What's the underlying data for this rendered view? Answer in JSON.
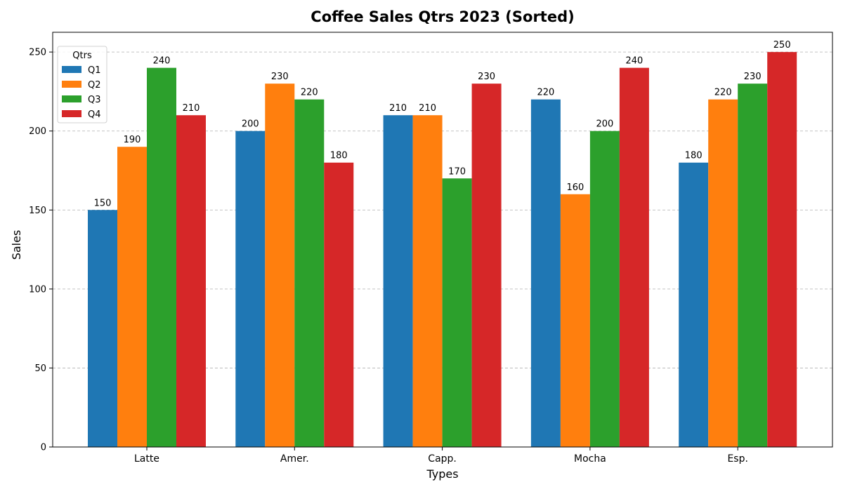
{
  "chart_data": {
    "type": "bar",
    "title": "Coffee Sales Qtrs 2023 (Sorted)",
    "xlabel": "Types",
    "ylabel": "Sales",
    "categories": [
      "Latte",
      "Amer.",
      "Capp.",
      "Mocha",
      "Esp."
    ],
    "series": [
      {
        "name": "Q1",
        "color": "#1f77b4",
        "values": [
          150,
          200,
          210,
          220,
          180
        ]
      },
      {
        "name": "Q2",
        "color": "#ff7f0e",
        "values": [
          190,
          230,
          210,
          160,
          220
        ]
      },
      {
        "name": "Q3",
        "color": "#2ca02c",
        "values": [
          240,
          220,
          170,
          200,
          230
        ]
      },
      {
        "name": "Q4",
        "color": "#d62728",
        "values": [
          210,
          180,
          230,
          240,
          250
        ]
      }
    ],
    "ylim": [
      0,
      262.5
    ],
    "yticks": [
      0,
      50,
      100,
      150,
      200,
      250
    ],
    "grid": "horizontal dashed",
    "legend": {
      "title": "Qtrs",
      "placement": "top-left"
    }
  }
}
